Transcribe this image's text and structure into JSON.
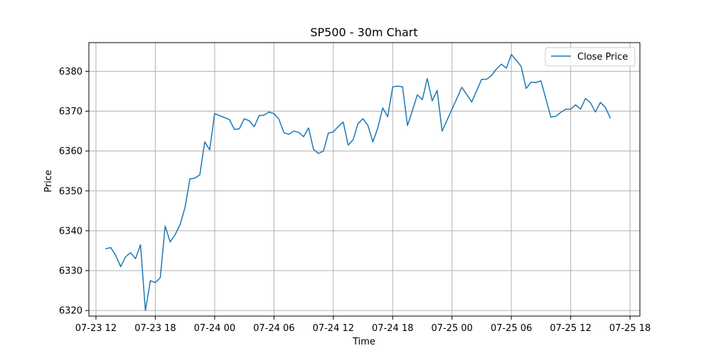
{
  "chart_data": {
    "type": "line",
    "title": "SP500 - 30m Chart",
    "xlabel": "Time",
    "ylabel": "Price",
    "grid": true,
    "legend_position": "top-right",
    "line_color": "#1f77b4",
    "x_ticks": [
      {
        "label": "07-23 12",
        "t": "2025-07-23T12:00"
      },
      {
        "label": "07-23 18",
        "t": "2025-07-23T18:00"
      },
      {
        "label": "07-24 00",
        "t": "2025-07-24T00:00"
      },
      {
        "label": "07-24 06",
        "t": "2025-07-24T06:00"
      },
      {
        "label": "07-24 12",
        "t": "2025-07-24T12:00"
      },
      {
        "label": "07-24 18",
        "t": "2025-07-24T18:00"
      },
      {
        "label": "07-25 00",
        "t": "2025-07-25T00:00"
      },
      {
        "label": "07-25 06",
        "t": "2025-07-25T06:00"
      },
      {
        "label": "07-25 12",
        "t": "2025-07-25T12:00"
      },
      {
        "label": "07-25 18",
        "t": "2025-07-25T18:00"
      }
    ],
    "y_ticks": [
      6320,
      6330,
      6340,
      6350,
      6360,
      6370,
      6380
    ],
    "xlim": [
      "2025-07-23T11:17",
      "2025-07-25T19:00"
    ],
    "ylim": [
      6318.6,
      6387.2
    ],
    "series": [
      {
        "name": "Close Price",
        "t": [
          "2025-07-23T13:00",
          "2025-07-23T13:30",
          "2025-07-23T14:00",
          "2025-07-23T14:30",
          "2025-07-23T15:00",
          "2025-07-23T15:30",
          "2025-07-23T16:00",
          "2025-07-23T16:30",
          "2025-07-23T17:00",
          "2025-07-23T17:30",
          "2025-07-23T18:00",
          "2025-07-23T18:30",
          "2025-07-23T19:00",
          "2025-07-23T19:30",
          "2025-07-23T20:00",
          "2025-07-23T20:30",
          "2025-07-23T21:00",
          "2025-07-23T21:30",
          "2025-07-23T22:00",
          "2025-07-23T22:30",
          "2025-07-23T23:00",
          "2025-07-23T23:30",
          "2025-07-24T00:00",
          "2025-07-24T00:30",
          "2025-07-24T01:00",
          "2025-07-24T01:30",
          "2025-07-24T02:00",
          "2025-07-24T02:30",
          "2025-07-24T03:00",
          "2025-07-24T03:30",
          "2025-07-24T04:00",
          "2025-07-24T04:30",
          "2025-07-24T05:00",
          "2025-07-24T05:30",
          "2025-07-24T06:00",
          "2025-07-24T06:30",
          "2025-07-24T07:00",
          "2025-07-24T07:30",
          "2025-07-24T08:00",
          "2025-07-24T08:30",
          "2025-07-24T09:00",
          "2025-07-24T09:30",
          "2025-07-24T10:00",
          "2025-07-24T10:30",
          "2025-07-24T11:00",
          "2025-07-24T11:30",
          "2025-07-24T12:00",
          "2025-07-24T12:30",
          "2025-07-24T13:00",
          "2025-07-24T13:30",
          "2025-07-24T14:00",
          "2025-07-24T14:30",
          "2025-07-24T15:00",
          "2025-07-24T15:30",
          "2025-07-24T16:00",
          "2025-07-24T16:30",
          "2025-07-24T17:00",
          "2025-07-24T17:30",
          "2025-07-24T18:00",
          "2025-07-24T18:30",
          "2025-07-24T19:00",
          "2025-07-24T19:30",
          "2025-07-24T20:00",
          "2025-07-24T20:30",
          "2025-07-24T21:00",
          "2025-07-24T21:30",
          "2025-07-24T22:00",
          "2025-07-24T22:30",
          "2025-07-24T23:00",
          "2025-07-25T01:00",
          "2025-07-25T02:00",
          "2025-07-25T03:00",
          "2025-07-25T03:30",
          "2025-07-25T04:00",
          "2025-07-25T04:30",
          "2025-07-25T05:00",
          "2025-07-25T05:30",
          "2025-07-25T06:00",
          "2025-07-25T06:30",
          "2025-07-25T07:00",
          "2025-07-25T07:30",
          "2025-07-25T08:00",
          "2025-07-25T08:30",
          "2025-07-25T09:00",
          "2025-07-25T09:30",
          "2025-07-25T10:00",
          "2025-07-25T10:30",
          "2025-07-25T11:00",
          "2025-07-25T11:30",
          "2025-07-25T12:00",
          "2025-07-25T12:30",
          "2025-07-25T13:00",
          "2025-07-25T13:30",
          "2025-07-25T14:00",
          "2025-07-25T14:30",
          "2025-07-25T15:00",
          "2025-07-25T15:30",
          "2025-07-25T16:00"
        ],
        "values": [
          6335.5,
          6335.8,
          6333.8,
          6331.0,
          6333.5,
          6334.5,
          6333.0,
          6336.5,
          6320.0,
          6327.5,
          6327.0,
          6328.2,
          6341.2,
          6337.2,
          6339.0,
          6341.5,
          6345.8,
          6353.0,
          6353.2,
          6354.0,
          6362.3,
          6360.3,
          6369.4,
          6368.9,
          6368.4,
          6367.9,
          6365.4,
          6365.6,
          6368.1,
          6367.6,
          6366.1,
          6368.9,
          6369.0,
          6369.8,
          6369.4,
          6368.0,
          6364.6,
          6364.2,
          6365.0,
          6364.7,
          6363.6,
          6365.8,
          6360.4,
          6359.4,
          6360.0,
          6364.5,
          6364.8,
          6366.2,
          6367.3,
          6361.5,
          6362.8,
          6366.9,
          6368.1,
          6366.4,
          6362.3,
          6365.8,
          6370.8,
          6368.6,
          6376.1,
          6376.3,
          6376.1,
          6366.4,
          6370.2,
          6374.1,
          6372.9,
          6378.2,
          6372.6,
          6375.2,
          6365.0,
          6376.0,
          6372.3,
          6378.0,
          6378.0,
          6379.0,
          6380.6,
          6381.8,
          6380.8,
          6384.2,
          6382.8,
          6381.2,
          6375.7,
          6377.3,
          6377.2,
          6377.6,
          6373.0,
          6368.5,
          6368.7,
          6369.7,
          6370.5,
          6370.5,
          6371.6,
          6370.5,
          6373.2,
          6372.1,
          6369.8,
          6372.2,
          6371.0,
          6368.3
        ]
      }
    ]
  }
}
